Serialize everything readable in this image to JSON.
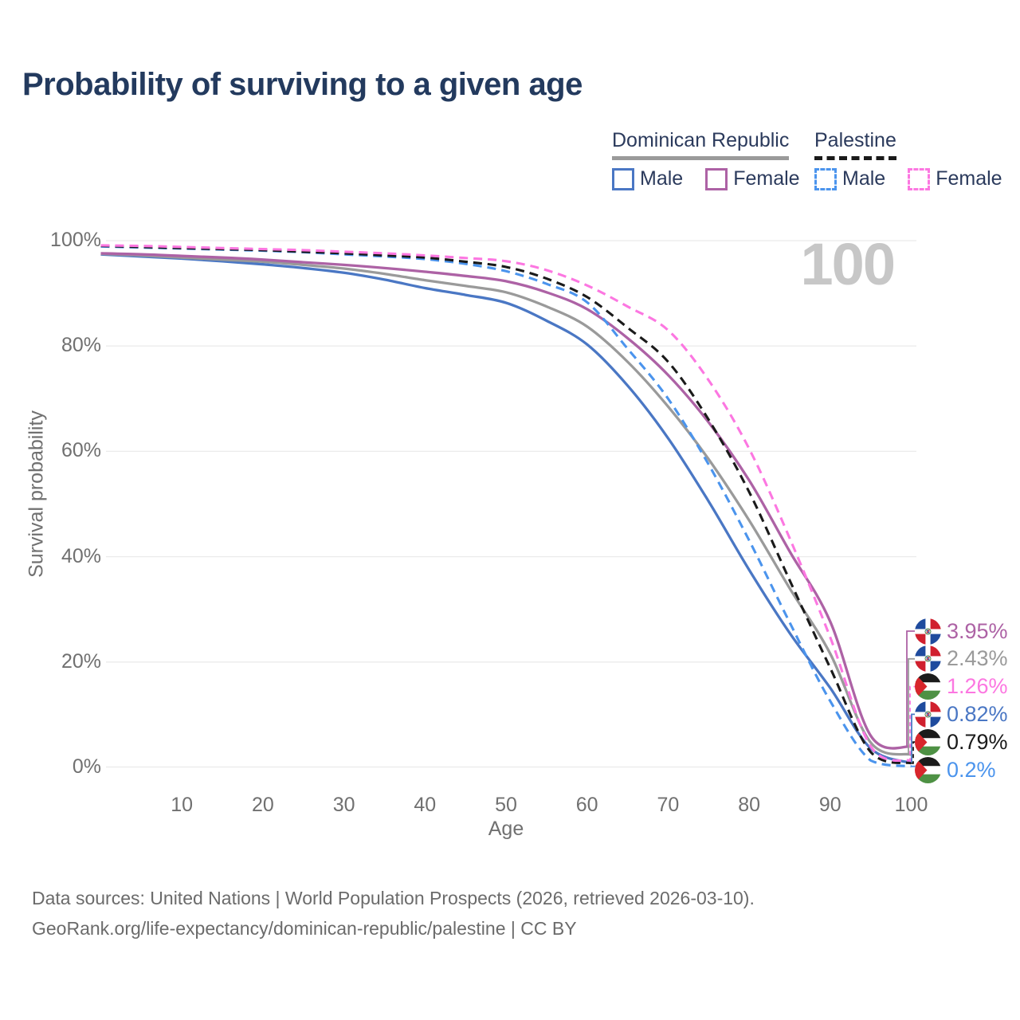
{
  "title": "Probability of surviving to a given age",
  "watermark": "100",
  "legend": {
    "groups": [
      {
        "label": "Dominican Republic",
        "line_style": "solid",
        "line_color": "#9a9a9a",
        "items": [
          {
            "label": "Male",
            "color": "#4a77c4",
            "dashed": false
          },
          {
            "label": "Female",
            "color": "#ad62a5",
            "dashed": false
          }
        ]
      },
      {
        "label": "Palestine",
        "line_style": "dashed",
        "line_color": "#1a1a1a",
        "items": [
          {
            "label": "Male",
            "color": "#4b94ed",
            "dashed": true
          },
          {
            "label": "Female",
            "color": "#fc77e1",
            "dashed": true
          }
        ]
      }
    ]
  },
  "chart_data": {
    "type": "line",
    "title": "Probability of surviving to a given age",
    "xlabel": "Age",
    "ylabel": "Survival probability",
    "xlim": [
      0,
      100
    ],
    "ylim": [
      0,
      100
    ],
    "x_ticks": [
      10,
      20,
      30,
      40,
      50,
      60,
      70,
      80,
      90,
      100
    ],
    "y_ticks": [
      0,
      20,
      40,
      60,
      80,
      100
    ],
    "y_tick_suffix": "%",
    "grid": "horizontal-only",
    "ages": [
      0,
      5,
      10,
      15,
      20,
      25,
      30,
      35,
      40,
      45,
      50,
      55,
      60,
      65,
      70,
      75,
      80,
      85,
      90,
      95,
      100
    ],
    "series": [
      {
        "name": "Dominican Republic Male",
        "country": "Dominican Republic",
        "flag": "dominican-republic",
        "color": "#4a77c4",
        "dashed": false,
        "end_label": "0.82%",
        "values": [
          97.4,
          97.0,
          96.6,
          96.1,
          95.5,
          94.8,
          93.9,
          92.6,
          91.0,
          89.7,
          88.2,
          84.8,
          80.3,
          72.5,
          62.5,
          50.5,
          37.5,
          25.5,
          15.1,
          3.6,
          0.82
        ]
      },
      {
        "name": "Dominican Republic",
        "country": "Dominican Republic",
        "flag": "dominican-republic",
        "color": "#9a9a9a",
        "dashed": false,
        "end_label": "2.43%",
        "values": [
          97.5,
          97.2,
          96.8,
          96.4,
          96.0,
          95.4,
          94.7,
          93.7,
          92.5,
          91.4,
          90.2,
          87.5,
          83.7,
          77.0,
          68.5,
          58.5,
          46.9,
          34.0,
          21.6,
          4.7,
          2.43
        ]
      },
      {
        "name": "Dominican Republic Female",
        "country": "Dominican Republic",
        "flag": "dominican-republic",
        "color": "#ad62a5",
        "dashed": false,
        "end_label": "3.95%",
        "values": [
          97.6,
          97.4,
          97.1,
          96.8,
          96.4,
          95.9,
          95.4,
          94.8,
          94.1,
          93.3,
          92.3,
          90.2,
          87.0,
          81.5,
          74.5,
          65.5,
          54.5,
          41.0,
          27.7,
          6.0,
          3.95
        ]
      },
      {
        "name": "Palestine Male",
        "country": "Palestine",
        "flag": "palestine",
        "color": "#4b94ed",
        "dashed": true,
        "end_label": "0.2%",
        "values": [
          98.9,
          98.7,
          98.5,
          98.3,
          98.1,
          97.8,
          97.4,
          97.0,
          96.5,
          95.6,
          94.2,
          91.8,
          88.3,
          79.5,
          70.0,
          57.5,
          43.1,
          27.5,
          12.6,
          1.3,
          0.2
        ]
      },
      {
        "name": "Palestine",
        "country": "Palestine",
        "flag": "palestine",
        "color": "#1a1a1a",
        "dashed": true,
        "end_label": "0.79%",
        "values": [
          99.0,
          98.8,
          98.6,
          98.4,
          98.2,
          97.9,
          97.6,
          97.2,
          96.8,
          96.0,
          95.0,
          92.8,
          89.3,
          83.5,
          77.0,
          66.0,
          52.3,
          35.5,
          18.9,
          2.9,
          0.79
        ]
      },
      {
        "name": "Palestine Female",
        "country": "Palestine",
        "flag": "palestine",
        "color": "#fc77e1",
        "dashed": true,
        "end_label": "1.26%",
        "values": [
          99.1,
          99.0,
          98.8,
          98.6,
          98.4,
          98.2,
          97.9,
          97.6,
          97.2,
          96.7,
          96.1,
          94.4,
          91.5,
          87.5,
          83.0,
          73.5,
          60.5,
          43.5,
          24.7,
          4.0,
          1.26
        ]
      }
    ],
    "end_labels": [
      {
        "label": "3.95%",
        "value": 3.95,
        "flag": "dominican-republic",
        "color": "#ad62a5",
        "dashed": false
      },
      {
        "label": "2.43%",
        "value": 2.43,
        "flag": "dominican-republic",
        "color": "#9a9a9a",
        "dashed": false
      },
      {
        "label": "1.26%",
        "value": 1.26,
        "flag": "palestine",
        "color": "#fc77e1",
        "dashed": true
      },
      {
        "label": "0.82%",
        "value": 0.82,
        "flag": "dominican-republic",
        "color": "#4a77c4",
        "dashed": false
      },
      {
        "label": "0.79%",
        "value": 0.79,
        "flag": "palestine",
        "color": "#1a1a1a",
        "dashed": true
      },
      {
        "label": "0.2%",
        "value": 0.2,
        "flag": "palestine",
        "color": "#4b94ed",
        "dashed": true
      }
    ]
  },
  "footer": {
    "line1": "Data sources: United Nations | World Population Prospects (2026, retrieved 2026-03-10).",
    "line2": "GeoRank.org/life-expectancy/dominican-republic/palestine | CC BY"
  }
}
